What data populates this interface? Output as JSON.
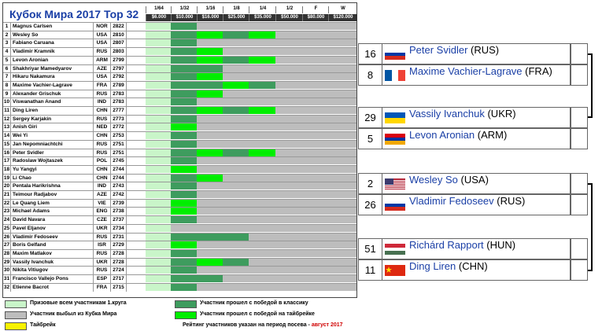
{
  "title": "Кубок Мира 2017 Тор 32",
  "rounds": [
    {
      "label": "1/64",
      "prize": "$6.000"
    },
    {
      "label": "1/32",
      "prize": "$10.000"
    },
    {
      "label": "1/16",
      "prize": "$16.000"
    },
    {
      "label": "1/8",
      "prize": "$25.000"
    },
    {
      "label": "1/4",
      "prize": "$35.000"
    },
    {
      "label": "1/2",
      "prize": "$50.000"
    },
    {
      "label": "F",
      "prize": "$80.000"
    },
    {
      "label": "W",
      "prize": "$120.000"
    }
  ],
  "colors": {
    "prize": "#c9f5c9",
    "classic": "#3e9c5e",
    "tiebreak": "#00ee00",
    "out": "#bdbdbd",
    "tiebreak_yellow": "#f7f200"
  },
  "players": [
    {
      "seed": "1",
      "name": "Magnus Carlsen",
      "country": "NOR",
      "rating": "2822",
      "rounds": [
        "c",
        "o",
        "o",
        "o",
        "o",
        "o",
        "o"
      ]
    },
    {
      "seed": "2",
      "name": "Wesley So",
      "country": "USA",
      "rating": "2810",
      "rounds": [
        "c",
        "t",
        "c",
        "t",
        "o",
        "o",
        "o"
      ]
    },
    {
      "seed": "3",
      "name": "Fabiano Caruana",
      "country": "USA",
      "rating": "2807",
      "rounds": [
        "c",
        "o",
        "o",
        "o",
        "o",
        "o",
        "o"
      ]
    },
    {
      "seed": "4",
      "name": "Vladimir Kramnik",
      "country": "RUS",
      "rating": "2803",
      "rounds": [
        "c",
        "t",
        "o",
        "o",
        "o",
        "o",
        "o"
      ]
    },
    {
      "seed": "5",
      "name": "Levon Aronian",
      "country": "ARM",
      "rating": "2799",
      "rounds": [
        "c",
        "t",
        "c",
        "t",
        "o",
        "o",
        "o"
      ]
    },
    {
      "seed": "6",
      "name": "Shakhriyar Mamedyarov",
      "country": "AZE",
      "rating": "2797",
      "rounds": [
        "c",
        "c",
        "o",
        "o",
        "o",
        "o",
        "o"
      ]
    },
    {
      "seed": "7",
      "name": "Hikaru Nakamura",
      "country": "USA",
      "rating": "2792",
      "rounds": [
        "c",
        "t",
        "o",
        "o",
        "o",
        "o",
        "o"
      ]
    },
    {
      "seed": "8",
      "name": "Maxime Vachier-Lagrave",
      "country": "FRA",
      "rating": "2789",
      "rounds": [
        "c",
        "c",
        "t",
        "c",
        "o",
        "o",
        "o"
      ]
    },
    {
      "seed": "9",
      "name": "Alexander Grischuk",
      "country": "RUS",
      "rating": "2783",
      "rounds": [
        "c",
        "t",
        "o",
        "o",
        "o",
        "o",
        "o"
      ]
    },
    {
      "seed": "10",
      "name": "Viswanathan Anand",
      "country": "IND",
      "rating": "2783",
      "rounds": [
        "c",
        "o",
        "o",
        "o",
        "o",
        "o",
        "o"
      ]
    },
    {
      "seed": "11",
      "name": "Ding Liren",
      "country": "CHN",
      "rating": "2777",
      "rounds": [
        "c",
        "t",
        "c",
        "t",
        "o",
        "o",
        "o"
      ]
    },
    {
      "seed": "12",
      "name": "Sergey Karjakin",
      "country": "RUS",
      "rating": "2773",
      "rounds": [
        "c",
        "o",
        "o",
        "o",
        "o",
        "o",
        "o"
      ]
    },
    {
      "seed": "13",
      "name": "Anish Giri",
      "country": "NED",
      "rating": "2772",
      "rounds": [
        "t",
        "o",
        "o",
        "o",
        "o",
        "o",
        "o"
      ]
    },
    {
      "seed": "14",
      "name": "Wei Yi",
      "country": "CHN",
      "rating": "2753",
      "rounds": [
        "c",
        "o",
        "o",
        "o",
        "o",
        "o",
        "o"
      ]
    },
    {
      "seed": "15",
      "name": "Jan Nepomniachtchi",
      "country": "RUS",
      "rating": "2751",
      "rounds": [
        "c",
        "o",
        "o",
        "o",
        "o",
        "o",
        "o"
      ]
    },
    {
      "seed": "16",
      "name": "Peter Svidler",
      "country": "RUS",
      "rating": "2751",
      "rounds": [
        "c",
        "t",
        "c",
        "t",
        "o",
        "o",
        "o"
      ]
    },
    {
      "seed": "17",
      "name": "Radoslaw Wojtaszek",
      "country": "POL",
      "rating": "2745",
      "rounds": [
        "c",
        "o",
        "o",
        "o",
        "o",
        "o",
        "o"
      ]
    },
    {
      "seed": "18",
      "name": "Yu Yangyi",
      "country": "CHN",
      "rating": "2744",
      "rounds": [
        "t",
        "o",
        "o",
        "o",
        "o",
        "o",
        "o"
      ]
    },
    {
      "seed": "19",
      "name": "Li Chao",
      "country": "CHN",
      "rating": "2744",
      "rounds": [
        "c",
        "t",
        "o",
        "o",
        "o",
        "o",
        "o"
      ]
    },
    {
      "seed": "20",
      "name": "Pentala Harikrishna",
      "country": "IND",
      "rating": "2743",
      "rounds": [
        "c",
        "o",
        "o",
        "o",
        "o",
        "o",
        "o"
      ]
    },
    {
      "seed": "21",
      "name": "Teimour Radjabov",
      "country": "AZE",
      "rating": "2742",
      "rounds": [
        "c",
        "o",
        "o",
        "o",
        "o",
        "o",
        "o"
      ]
    },
    {
      "seed": "22",
      "name": "Le Quang Liem",
      "country": "VIE",
      "rating": "2739",
      "rounds": [
        "t",
        "o",
        "o",
        "o",
        "o",
        "o",
        "o"
      ]
    },
    {
      "seed": "23",
      "name": "Michael Adams",
      "country": "ENG",
      "rating": "2738",
      "rounds": [
        "t",
        "o",
        "o",
        "o",
        "o",
        "o",
        "o"
      ]
    },
    {
      "seed": "24",
      "name": "David Navara",
      "country": "CZE",
      "rating": "2737",
      "rounds": [
        "c",
        "o",
        "o",
        "o",
        "o",
        "o",
        "o"
      ]
    },
    {
      "seed": "25",
      "name": "Pavel Eljanov",
      "country": "UKR",
      "rating": "2734",
      "rounds": [
        "o",
        "o",
        "o",
        "o",
        "o",
        "o",
        "o"
      ]
    },
    {
      "seed": "26",
      "name": "Vladimir Fedoseev",
      "country": "RUS",
      "rating": "2731",
      "rounds": [
        "c",
        "c",
        "c",
        "o",
        "o",
        "o",
        "o"
      ]
    },
    {
      "seed": "27",
      "name": "Boris Gelfand",
      "country": "ISR",
      "rating": "2729",
      "rounds": [
        "t",
        "o",
        "o",
        "o",
        "o",
        "o",
        "o"
      ]
    },
    {
      "seed": "28",
      "name": "Maxim Matlakov",
      "country": "RUS",
      "rating": "2728",
      "rounds": [
        "c",
        "o",
        "o",
        "o",
        "o",
        "o",
        "o"
      ]
    },
    {
      "seed": "29",
      "name": "Vassily Ivanchuk",
      "country": "UKR",
      "rating": "2728",
      "rounds": [
        "c",
        "t",
        "c",
        "o",
        "o",
        "o",
        "o"
      ]
    },
    {
      "seed": "30",
      "name": "Nikita Vitiugov",
      "country": "RUS",
      "rating": "2724",
      "rounds": [
        "c",
        "o",
        "o",
        "o",
        "o",
        "o",
        "o"
      ]
    },
    {
      "seed": "31",
      "name": "Francisco Vallejo Pons",
      "country": "ESP",
      "rating": "2717",
      "rounds": [
        "c",
        "c",
        "o",
        "o",
        "o",
        "o",
        "o"
      ]
    },
    {
      "seed": "32",
      "name": "Etienne Bacrot",
      "country": "FRA",
      "rating": "2715",
      "rounds": [
        "c",
        "o",
        "o",
        "o",
        "o",
        "o",
        "o"
      ]
    }
  ],
  "legend": {
    "prize": "Призовые всем участникам 1.круга",
    "out": "Участник выбыл из Кубка Мира",
    "tiebreak": "Тайбрейк",
    "classic": "Участник прошел с победой в классику",
    "tiebreak_win": "Участник прошел с победой на тайбрейке",
    "rating_note": "Рейтинг участников указан на период посева -",
    "rating_date": "август 2017"
  },
  "bracket": [
    {
      "seed": "16",
      "name": "Peter Svidler",
      "country": "(RUS)",
      "flag": "rus"
    },
    {
      "seed": "8",
      "name": "Maxime Vachier-Lagrave",
      "country": "(FRA)",
      "flag": "fra"
    },
    {
      "seed": "29",
      "name": "Vassily Ivanchuk",
      "country": "(UKR)",
      "flag": "ukr"
    },
    {
      "seed": "5",
      "name": "Levon Aronian",
      "country": "(ARM)",
      "flag": "arm"
    },
    {
      "seed": "2",
      "name": "Wesley So",
      "country": "(USA)",
      "flag": "usa"
    },
    {
      "seed": "26",
      "name": "Vladimir Fedoseev",
      "country": "(RUS)",
      "flag": "rus"
    },
    {
      "seed": "51",
      "name": "Richárd Rapport",
      "country": "(HUN)",
      "flag": "hun"
    },
    {
      "seed": "11",
      "name": "Ding Liren",
      "country": "(CHN)",
      "flag": "chn"
    }
  ]
}
